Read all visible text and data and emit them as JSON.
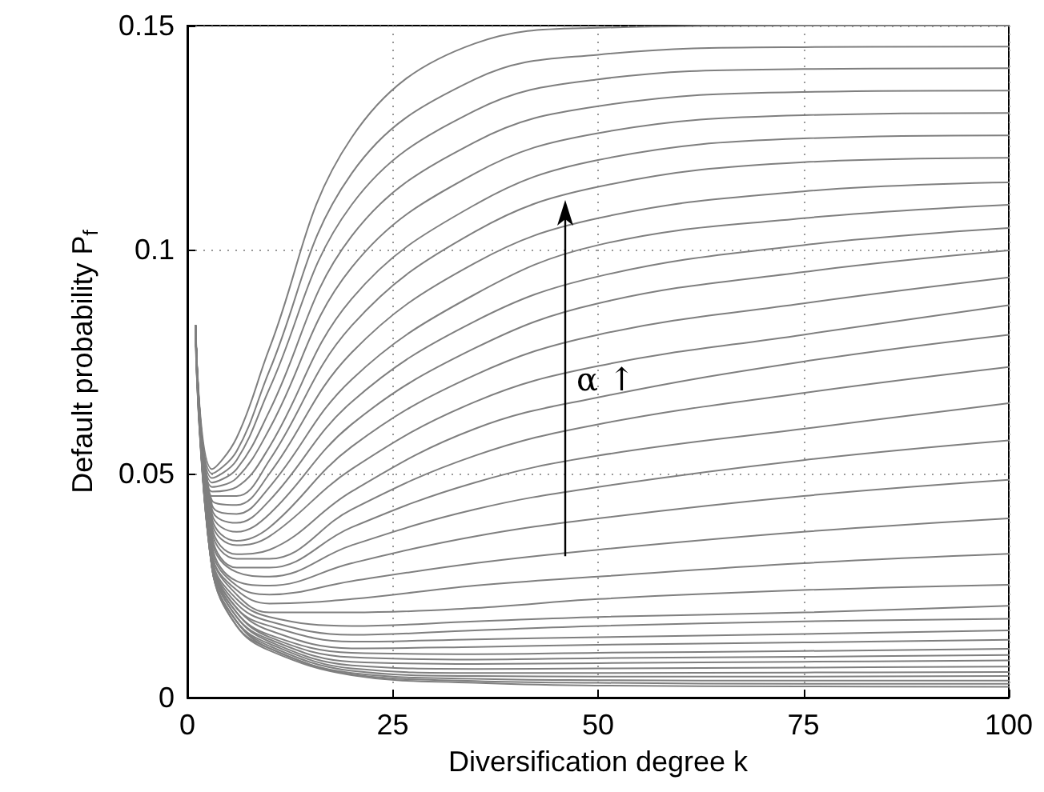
{
  "chart_data": {
    "type": "line",
    "xlabel": "Diversification degree k",
    "ylabel": "Default probability P$_{f}$",
    "x": [
      1,
      3,
      6,
      10,
      20,
      35,
      50,
      75,
      100
    ],
    "xlim": [
      0,
      100
    ],
    "xticks": [
      0,
      25,
      50,
      75,
      100
    ],
    "ylim": [
      0,
      0.15
    ],
    "yticks": [
      0,
      0.05,
      0.1,
      0.15
    ],
    "grid": true,
    "marker": "none",
    "line_style": "solid",
    "annotations": [
      "α ↑"
    ],
    "series": [
      {
        "color": "#7f7f7f",
        "values": [
          0.083,
          0.051,
          0.058,
          0.078,
          0.125,
          0.146,
          0.1495,
          0.15,
          0.15
        ]
      },
      {
        "color": "#7f7f7f",
        "values": [
          0.083,
          0.05,
          0.055,
          0.073,
          0.117,
          0.138,
          0.1435,
          0.1452,
          0.1453
        ]
      },
      {
        "color": "#7f7f7f",
        "values": [
          0.083,
          0.049,
          0.053,
          0.069,
          0.11,
          0.131,
          0.138,
          0.1403,
          0.1405
        ]
      },
      {
        "color": "#7f7f7f",
        "values": [
          0.083,
          0.048,
          0.051,
          0.064,
          0.103,
          0.124,
          0.132,
          0.1352,
          0.1355
        ]
      },
      {
        "color": "#7f7f7f",
        "values": [
          0.083,
          0.047,
          0.049,
          0.06,
          0.096,
          0.117,
          0.126,
          0.13,
          0.1305
        ]
      },
      {
        "color": "#7f7f7f",
        "values": [
          0.083,
          0.046,
          0.047,
          0.056,
          0.089,
          0.11,
          0.12,
          0.1248,
          0.1255
        ]
      },
      {
        "color": "#7f7f7f",
        "values": [
          0.083,
          0.045,
          0.045,
          0.053,
          0.083,
          0.104,
          0.114,
          0.1195,
          0.1205
        ]
      },
      {
        "color": "#7f7f7f",
        "values": [
          0.083,
          0.044,
          0.043,
          0.05,
          0.077,
          0.097,
          0.107,
          0.113,
          0.115
        ]
      },
      {
        "color": "#7f7f7f",
        "values": [
          0.083,
          0.043,
          0.041,
          0.047,
          0.071,
          0.09,
          0.101,
          0.107,
          0.11
        ]
      },
      {
        "color": "#7f7f7f",
        "values": [
          0.083,
          0.042,
          0.039,
          0.044,
          0.066,
          0.084,
          0.094,
          0.101,
          0.1048
        ]
      },
      {
        "color": "#7f7f7f",
        "values": [
          0.083,
          0.041,
          0.037,
          0.041,
          0.061,
          0.078,
          0.088,
          0.095,
          0.0998
        ]
      },
      {
        "color": "#7f7f7f",
        "values": [
          0.083,
          0.04,
          0.035,
          0.038,
          0.056,
          0.072,
          0.081,
          0.088,
          0.0938
        ]
      },
      {
        "color": "#7f7f7f",
        "values": [
          0.083,
          0.039,
          0.034,
          0.036,
          0.051,
          0.066,
          0.074,
          0.081,
          0.0876
        ]
      },
      {
        "color": "#7f7f7f",
        "values": [
          0.083,
          0.038,
          0.032,
          0.033,
          0.046,
          0.06,
          0.067,
          0.075,
          0.081
        ]
      },
      {
        "color": "#7f7f7f",
        "values": [
          0.083,
          0.037,
          0.031,
          0.031,
          0.042,
          0.054,
          0.061,
          0.068,
          0.0738
        ]
      },
      {
        "color": "#7f7f7f",
        "values": [
          0.083,
          0.036,
          0.029,
          0.029,
          0.038,
          0.048,
          0.054,
          0.06,
          0.0657
        ]
      },
      {
        "color": "#7f7f7f",
        "values": [
          0.083,
          0.035,
          0.028,
          0.027,
          0.034,
          0.042,
          0.047,
          0.053,
          0.0574
        ]
      },
      {
        "color": "#7f7f7f",
        "values": [
          0.083,
          0.034,
          0.026,
          0.025,
          0.03,
          0.036,
          0.04,
          0.045,
          0.0486
        ]
      },
      {
        "color": "#7f7f7f",
        "values": [
          0.083,
          0.033,
          0.025,
          0.023,
          0.026,
          0.03,
          0.033,
          0.037,
          0.04
        ]
      },
      {
        "color": "#7f7f7f",
        "values": [
          0.083,
          0.032,
          0.024,
          0.021,
          0.022,
          0.025,
          0.027,
          0.03,
          0.0321
        ]
      },
      {
        "color": "#7f7f7f",
        "values": [
          0.083,
          0.032,
          0.023,
          0.019,
          0.019,
          0.02,
          0.022,
          0.024,
          0.0252
        ]
      },
      {
        "color": "#7f7f7f",
        "values": [
          0.083,
          0.031,
          0.022,
          0.018,
          0.016,
          0.017,
          0.018,
          0.019,
          0.0205
        ]
      },
      {
        "color": "#7f7f7f",
        "values": [
          0.083,
          0.031,
          0.021,
          0.017,
          0.014,
          0.015,
          0.016,
          0.017,
          0.0176
        ]
      },
      {
        "color": "#7f7f7f",
        "values": [
          0.083,
          0.031,
          0.02,
          0.016,
          0.0125,
          0.013,
          0.0135,
          0.0142,
          0.015
        ]
      },
      {
        "color": "#7f7f7f",
        "values": [
          0.083,
          0.03,
          0.02,
          0.015,
          0.011,
          0.0113,
          0.0118,
          0.0123,
          0.0129
        ]
      },
      {
        "color": "#7f7f7f",
        "values": [
          0.083,
          0.03,
          0.019,
          0.014,
          0.01,
          0.0097,
          0.01,
          0.0104,
          0.0109
        ]
      },
      {
        "color": "#7f7f7f",
        "values": [
          0.083,
          0.03,
          0.019,
          0.0135,
          0.009,
          0.0085,
          0.0088,
          0.0091,
          0.0095
        ]
      },
      {
        "color": "#7f7f7f",
        "values": [
          0.083,
          0.03,
          0.018,
          0.013,
          0.008,
          0.0075,
          0.0077,
          0.008,
          0.0083
        ]
      },
      {
        "color": "#7f7f7f",
        "values": [
          0.083,
          0.03,
          0.018,
          0.0125,
          0.0072,
          0.0064,
          0.0065,
          0.0067,
          0.0069
        ]
      },
      {
        "color": "#7f7f7f",
        "values": [
          0.083,
          0.029,
          0.017,
          0.012,
          0.0065,
          0.0055,
          0.0055,
          0.0056,
          0.0057
        ]
      },
      {
        "color": "#7f7f7f",
        "values": [
          0.083,
          0.029,
          0.017,
          0.0115,
          0.006,
          0.0048,
          0.0047,
          0.0047,
          0.0048
        ]
      },
      {
        "color": "#7f7f7f",
        "values": [
          0.083,
          0.029,
          0.017,
          0.011,
          0.0055,
          0.0042,
          0.0039,
          0.0038,
          0.0038
        ]
      },
      {
        "color": "#7f7f7f",
        "values": [
          0.081,
          0.029,
          0.016,
          0.011,
          0.0052,
          0.0037,
          0.0033,
          0.0031,
          0.0031
        ]
      },
      {
        "color": "#7f7f7f",
        "values": [
          0.08,
          0.029,
          0.016,
          0.0105,
          0.005,
          0.0033,
          0.0027,
          0.0025,
          0.0024
        ]
      }
    ]
  }
}
